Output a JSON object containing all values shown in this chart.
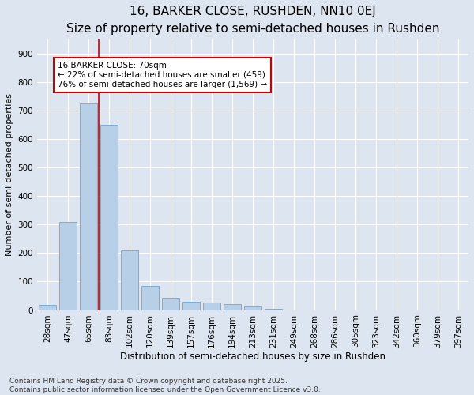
{
  "title": "16, BARKER CLOSE, RUSHDEN, NN10 0EJ",
  "subtitle": "Size of property relative to semi-detached houses in Rushden",
  "xlabel": "Distribution of semi-detached houses by size in Rushden",
  "ylabel": "Number of semi-detached properties",
  "categories": [
    "28sqm",
    "47sqm",
    "65sqm",
    "83sqm",
    "102sqm",
    "120sqm",
    "139sqm",
    "157sqm",
    "176sqm",
    "194sqm",
    "213sqm",
    "231sqm",
    "249sqm",
    "268sqm",
    "286sqm",
    "305sqm",
    "323sqm",
    "342sqm",
    "360sqm",
    "379sqm",
    "397sqm"
  ],
  "values": [
    18,
    310,
    725,
    650,
    210,
    85,
    43,
    28,
    27,
    22,
    15,
    4,
    0,
    0,
    0,
    0,
    0,
    0,
    0,
    0,
    0
  ],
  "bar_color": "#b8cfe8",
  "bar_edge_color": "#7aadd4",
  "vline_x_index": 2,
  "vline_color": "#cc0000",
  "annotation_line1": "16 BARKER CLOSE: 70sqm",
  "annotation_line2": "← 22% of semi-detached houses are smaller (459)",
  "annotation_line3": "76% of semi-detached houses are larger (1,569) →",
  "annotation_box_color": "#ffffff",
  "annotation_box_edge": "#cc0000",
  "ylim": [
    0,
    950
  ],
  "yticks": [
    0,
    100,
    200,
    300,
    400,
    500,
    600,
    700,
    800,
    900
  ],
  "background_color": "#dde6f0",
  "plot_background": "#dde6f0",
  "footer_text": "Contains HM Land Registry data © Crown copyright and database right 2025.\nContains public sector information licensed under the Open Government Licence v3.0.",
  "title_fontsize": 11,
  "subtitle_fontsize": 9.5,
  "xlabel_fontsize": 8.5,
  "ylabel_fontsize": 8,
  "tick_fontsize": 7.5,
  "annotation_fontsize": 7.5,
  "footer_fontsize": 6.5
}
